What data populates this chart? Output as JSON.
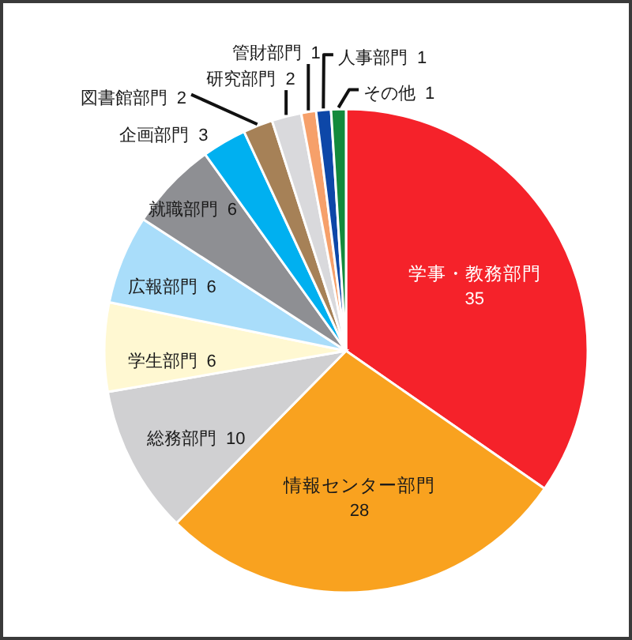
{
  "chart_data": {
    "type": "pie",
    "categories": [
      "学事・教務部門",
      "情報センター部門",
      "総務部門",
      "学生部門",
      "広報部門",
      "就職部門",
      "企画部門",
      "図書館部門",
      "研究部門",
      "管財部門",
      "人事部門",
      "その他"
    ],
    "values": [
      35,
      28,
      10,
      6,
      6,
      6,
      3,
      2,
      2,
      1,
      1,
      1
    ],
    "colors": [
      "#f5222a",
      "#f9a21f",
      "#d0d0d2",
      "#fff8d2",
      "#a9ddfa",
      "#8e8f93",
      "#00b0f0",
      "#a68157",
      "#d9d9dc",
      "#f6a06a",
      "#0d47a8",
      "#138a3c"
    ],
    "data_labels": true
  }
}
